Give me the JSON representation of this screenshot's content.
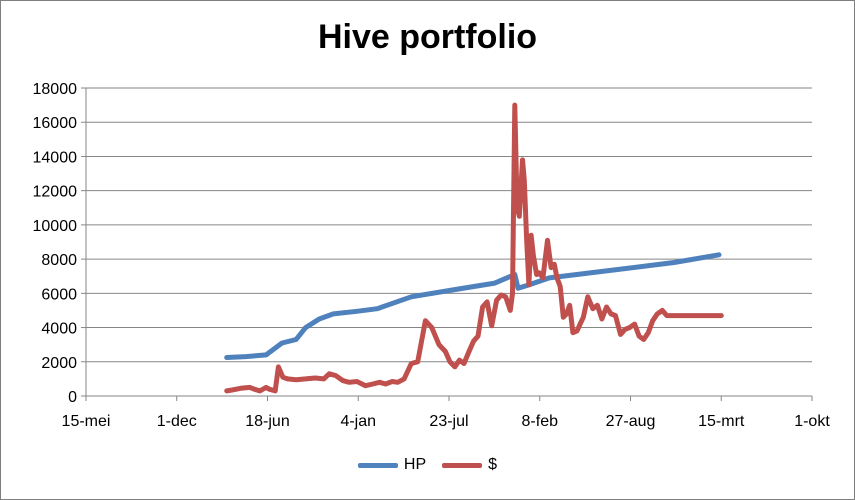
{
  "chart_data": {
    "type": "line",
    "title": "Hive portfolio",
    "xlabel": "",
    "ylabel": "",
    "x_ticks": [
      "15-mei",
      "1-dec",
      "18-jun",
      "4-jan",
      "23-jul",
      "8-feb",
      "27-aug",
      "15-mrt",
      "1-okt"
    ],
    "y_ticks": [
      "0",
      "2000",
      "4000",
      "6000",
      "8000",
      "10000",
      "12000",
      "14000",
      "16000",
      "18000"
    ],
    "xlim": [
      "2019-05-15",
      "2023-10-01"
    ],
    "ylim": [
      0,
      18000
    ],
    "grid": "horizontal",
    "legend": "bottom",
    "series": [
      {
        "name": "HP",
        "color": "#4F81BD",
        "x": [
          "2020-03-20",
          "2020-05-01",
          "2020-06-15",
          "2020-07-20",
          "2020-08-20",
          "2020-09-10",
          "2020-10-10",
          "2020-11-10",
          "2021-01-01",
          "2021-02-15",
          "2021-05-01",
          "2021-08-01",
          "2021-11-01",
          "2021-12-15",
          "2021-12-22",
          "2022-01-10",
          "2022-03-01",
          "2022-08-01",
          "2022-12-01",
          "2023-03-10"
        ],
        "y": [
          2250,
          2300,
          2400,
          3100,
          3300,
          4000,
          4500,
          4800,
          4950,
          5100,
          5800,
          6200,
          6600,
          7100,
          6300,
          6450,
          6900,
          7400,
          7800,
          8250
        ]
      },
      {
        "name": "$",
        "color": "#C0504D",
        "x": [
          "2020-03-20",
          "2020-04-01",
          "2020-04-20",
          "2020-05-10",
          "2020-05-20",
          "2020-06-01",
          "2020-06-15",
          "2020-06-22",
          "2020-07-05",
          "2020-07-12",
          "2020-07-22",
          "2020-08-01",
          "2020-08-20",
          "2020-09-10",
          "2020-10-01",
          "2020-10-20",
          "2020-11-01",
          "2020-11-15",
          "2020-12-01",
          "2020-12-15",
          "2021-01-01",
          "2021-01-20",
          "2021-02-05",
          "2021-02-20",
          "2021-03-05",
          "2021-03-20",
          "2021-04-01",
          "2021-04-15",
          "2021-05-01",
          "2021-05-15",
          "2021-06-01",
          "2021-06-15",
          "2021-07-01",
          "2021-07-15",
          "2021-07-25",
          "2021-08-05",
          "2021-08-15",
          "2021-08-25",
          "2021-09-05",
          "2021-09-15",
          "2021-09-25",
          "2021-10-05",
          "2021-10-15",
          "2021-10-25",
          "2021-11-05",
          "2021-11-15",
          "2021-11-25",
          "2021-12-05",
          "2021-12-10",
          "2021-12-15",
          "2021-12-20",
          "2021-12-25",
          "2022-01-01",
          "2022-01-05",
          "2022-01-10",
          "2022-01-15",
          "2022-01-20",
          "2022-01-25",
          "2022-02-01",
          "2022-02-07",
          "2022-02-15",
          "2022-02-25",
          "2022-03-05",
          "2022-03-12",
          "2022-03-18",
          "2022-03-25",
          "2022-04-01",
          "2022-04-08",
          "2022-04-15",
          "2022-04-22",
          "2022-05-01",
          "2022-05-08",
          "2022-05-15",
          "2022-05-25",
          "2022-06-05",
          "2022-06-15",
          "2022-06-25",
          "2022-07-05",
          "2022-07-15",
          "2022-07-25",
          "2022-08-05",
          "2022-08-15",
          "2022-08-25",
          "2022-09-05",
          "2022-09-15",
          "2022-09-25",
          "2022-10-05",
          "2022-10-15",
          "2022-10-25",
          "2022-11-05",
          "2022-11-15",
          "2022-11-25",
          "2022-12-05",
          "2022-12-15",
          "2022-12-25",
          "2023-01-05",
          "2023-01-15",
          "2023-01-25",
          "2023-02-05",
          "2023-02-15",
          "2023-02-25",
          "2023-03-05",
          "2023-03-15"
        ],
        "y": [
          300,
          350,
          450,
          500,
          400,
          300,
          500,
          400,
          300,
          1700,
          1100,
          1000,
          950,
          1000,
          1050,
          1000,
          1300,
          1200,
          900,
          800,
          850,
          600,
          700,
          800,
          700,
          850,
          800,
          1000,
          1900,
          2000,
          4400,
          4000,
          3000,
          2600,
          2000,
          1700,
          2100,
          1900,
          2600,
          3200,
          3500,
          5200,
          5500,
          4100,
          5600,
          5900,
          5800,
          5000,
          6000,
          17000,
          11000,
          10500,
          13800,
          12600,
          9200,
          6500,
          9400,
          8200,
          7100,
          7200,
          6900,
          9100,
          7500,
          7700,
          6900,
          6400,
          4600,
          4800,
          5300,
          3700,
          3800,
          4200,
          4600,
          5800,
          5100,
          5300,
          4500,
          5200,
          4800,
          4700,
          3600,
          3900,
          4000,
          4200,
          3500,
          3300,
          3700,
          4400,
          4800,
          5000,
          4700,
          4700,
          4700,
          4700,
          4700,
          4700,
          4700,
          4700,
          4700,
          4700,
          4700,
          4700,
          4700
        ]
      }
    ]
  }
}
